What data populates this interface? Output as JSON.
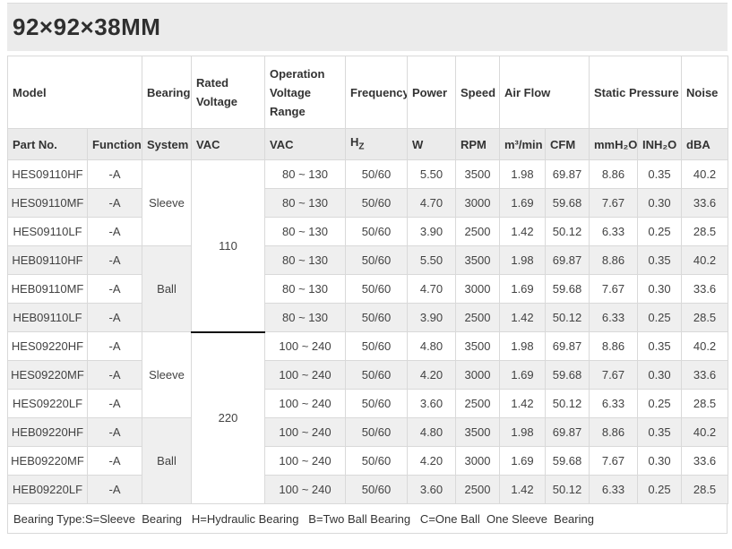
{
  "title": "92×92×38MM",
  "table": {
    "header_groups": {
      "model": "Model",
      "bearing": "Bearing",
      "rated_voltage": "Rated Voltage",
      "operation_voltage_range": "Operation Voltage Range",
      "frequency": "Frequency",
      "power": "Power",
      "speed": "Speed",
      "air_flow": "Air Flow",
      "static_pressure": "Static Pressure",
      "noise": "Noise"
    },
    "units": {
      "part_no": "Part No.",
      "function": "Function",
      "system": "System",
      "rated_vac": "VAC",
      "operation_vac": "VAC",
      "hz_base": "H",
      "hz_sub": "Z",
      "w": "W",
      "rpm": "RPM",
      "m3min": "m³/min",
      "cfm": "CFM",
      "mmh2o": "mmH₂O",
      "inh2o": "INH₂O",
      "dba": "dBA"
    },
    "row_groups": [
      {
        "rated_voltage": "110",
        "subgroups": [
          {
            "system": "Sleeve",
            "rows": [
              {
                "part_no": "HES09110HF",
                "function": "-A",
                "operation_voltage": "80 ~ 130",
                "frequency": "50/60",
                "power_w": "5.50",
                "speed_rpm": "3500",
                "airflow_m3min": "1.98",
                "airflow_cfm": "69.87",
                "pressure_mmh2o": "8.86",
                "pressure_inh2o": "0.35",
                "noise_dba": "40.2"
              },
              {
                "part_no": "HES09110MF",
                "function": "-A",
                "operation_voltage": "80 ~ 130",
                "frequency": "50/60",
                "power_w": "4.70",
                "speed_rpm": "3000",
                "airflow_m3min": "1.69",
                "airflow_cfm": "59.68",
                "pressure_mmh2o": "7.67",
                "pressure_inh2o": "0.30",
                "noise_dba": "33.6"
              },
              {
                "part_no": "HES09110LF",
                "function": "-A",
                "operation_voltage": "80 ~ 130",
                "frequency": "50/60",
                "power_w": "3.90",
                "speed_rpm": "2500",
                "airflow_m3min": "1.42",
                "airflow_cfm": "50.12",
                "pressure_mmh2o": "6.33",
                "pressure_inh2o": "0.25",
                "noise_dba": "28.5"
              }
            ]
          },
          {
            "system": "Ball",
            "rows": [
              {
                "part_no": "HEB09110HF",
                "function": "-A",
                "operation_voltage": "80 ~ 130",
                "frequency": "50/60",
                "power_w": "5.50",
                "speed_rpm": "3500",
                "airflow_m3min": "1.98",
                "airflow_cfm": "69.87",
                "pressure_mmh2o": "8.86",
                "pressure_inh2o": "0.35",
                "noise_dba": "40.2"
              },
              {
                "part_no": "HEB09110MF",
                "function": "-A",
                "operation_voltage": "80 ~ 130",
                "frequency": "50/60",
                "power_w": "4.70",
                "speed_rpm": "3000",
                "airflow_m3min": "1.69",
                "airflow_cfm": "59.68",
                "pressure_mmh2o": "7.67",
                "pressure_inh2o": "0.30",
                "noise_dba": "33.6"
              },
              {
                "part_no": "HEB09110LF",
                "function": "-A",
                "operation_voltage": "80 ~ 130",
                "frequency": "50/60",
                "power_w": "3.90",
                "speed_rpm": "2500",
                "airflow_m3min": "1.42",
                "airflow_cfm": "50.12",
                "pressure_mmh2o": "6.33",
                "pressure_inh2o": "0.25",
                "noise_dba": "28.5"
              }
            ]
          }
        ]
      },
      {
        "rated_voltage": "220",
        "subgroups": [
          {
            "system": "Sleeve",
            "rows": [
              {
                "part_no": "HES09220HF",
                "function": "-A",
                "operation_voltage": "100 ~ 240",
                "frequency": "50/60",
                "power_w": "4.80",
                "speed_rpm": "3500",
                "airflow_m3min": "1.98",
                "airflow_cfm": "69.87",
                "pressure_mmh2o": "8.86",
                "pressure_inh2o": "0.35",
                "noise_dba": "40.2"
              },
              {
                "part_no": "HES09220MF",
                "function": "-A",
                "operation_voltage": "100 ~ 240",
                "frequency": "50/60",
                "power_w": "4.20",
                "speed_rpm": "3000",
                "airflow_m3min": "1.69",
                "airflow_cfm": "59.68",
                "pressure_mmh2o": "7.67",
                "pressure_inh2o": "0.30",
                "noise_dba": "33.6"
              },
              {
                "part_no": "HES09220LF",
                "function": "-A",
                "operation_voltage": "100 ~ 240",
                "frequency": "50/60",
                "power_w": "3.60",
                "speed_rpm": "2500",
                "airflow_m3min": "1.42",
                "airflow_cfm": "50.12",
                "pressure_mmh2o": "6.33",
                "pressure_inh2o": "0.25",
                "noise_dba": "28.5"
              }
            ]
          },
          {
            "system": "Ball",
            "rows": [
              {
                "part_no": "HEB09220HF",
                "function": "-A",
                "operation_voltage": "100 ~ 240",
                "frequency": "50/60",
                "power_w": "4.80",
                "speed_rpm": "3500",
                "airflow_m3min": "1.98",
                "airflow_cfm": "69.87",
                "pressure_mmh2o": "8.86",
                "pressure_inh2o": "0.35",
                "noise_dba": "40.2"
              },
              {
                "part_no": "HEB09220MF",
                "function": "-A",
                "operation_voltage": "100 ~ 240",
                "frequency": "50/60",
                "power_w": "4.20",
                "speed_rpm": "3000",
                "airflow_m3min": "1.69",
                "airflow_cfm": "59.68",
                "pressure_mmh2o": "7.67",
                "pressure_inh2o": "0.30",
                "noise_dba": "33.6"
              },
              {
                "part_no": "HEB09220LF",
                "function": "-A",
                "operation_voltage": "100 ~ 240",
                "frequency": "50/60",
                "power_w": "3.60",
                "speed_rpm": "2500",
                "airflow_m3min": "1.42",
                "airflow_cfm": "50.12",
                "pressure_mmh2o": "6.33",
                "pressure_inh2o": "0.25",
                "noise_dba": "28.5"
              }
            ]
          }
        ]
      }
    ]
  },
  "footer": {
    "note": "Bearing Type:S=Sleeve  Bearing   H=Hydraulic Bearing   B=Two Ball Bearing   C=One Ball  One Sleeve  Bearing"
  }
}
